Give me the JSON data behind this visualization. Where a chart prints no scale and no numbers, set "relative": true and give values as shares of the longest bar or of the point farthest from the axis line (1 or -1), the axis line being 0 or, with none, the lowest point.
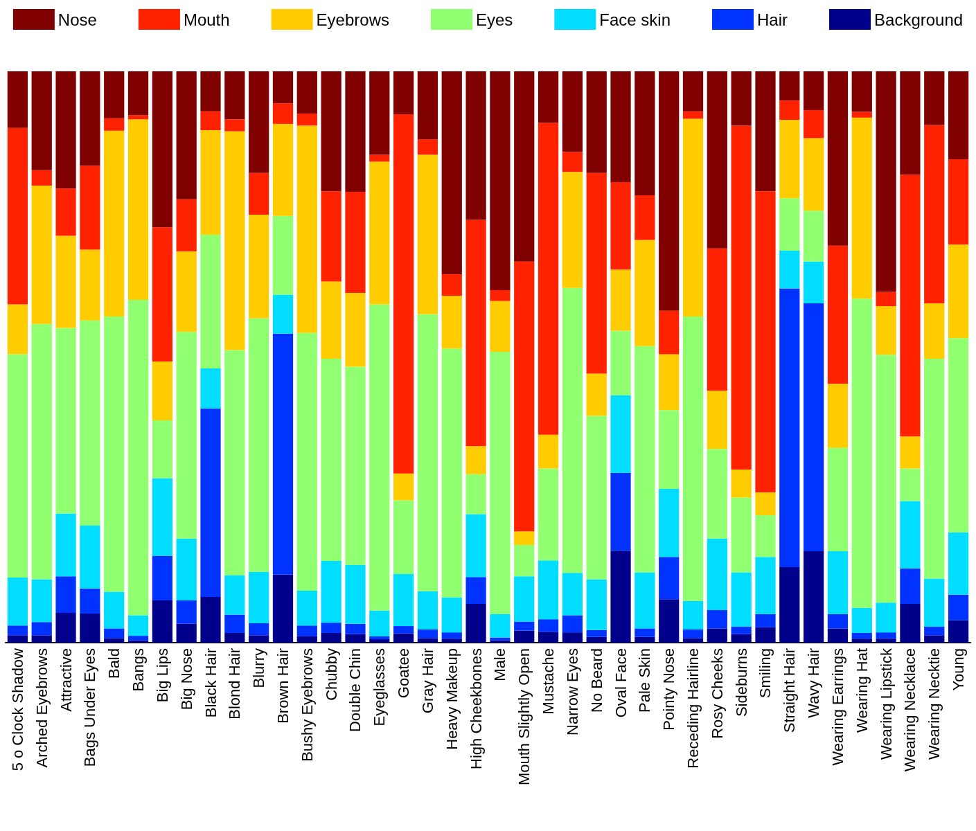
{
  "chart_data": {
    "type": "bar",
    "stacked": true,
    "relative": true,
    "legend": "top",
    "grid": false,
    "categories": [
      "5 o Clock Shadow",
      "Arched Eyebrows",
      "Attractive",
      "Bags Under Eyes",
      "Bald",
      "Bangs",
      "Big Lips",
      "Big Nose",
      "Black Hair",
      "Blond Hair",
      "Blurry",
      "Brown Hair",
      "Bushy Eyebrows",
      "Chubby",
      "Double Chin",
      "Eyeglasses",
      "Goatee",
      "Gray Hair",
      "Heavy Makeup",
      "High Cheekbones",
      "Male",
      "Mouth Slightly Open",
      "Mustache",
      "Narrow Eyes",
      "No Beard",
      "Oval Face",
      "Pale Skin",
      "Pointy Nose",
      "Receding Hairline",
      "Rosy Cheeks",
      "Sideburns",
      "Smiling",
      "Straight Hair",
      "Wavy Hair",
      "Wearing Earrings",
      "Wearing Hat",
      "Wearing Lipstick",
      "Wearing Necklace",
      "Wearing Necktie",
      "Young"
    ],
    "series": [
      {
        "name": "Background",
        "color": "#00008b",
        "values": [
          0.013,
          0.013,
          0.052,
          0.051,
          0.008,
          0.004,
          0.074,
          0.033,
          0.08,
          0.017,
          0.013,
          0.119,
          0.011,
          0.017,
          0.015,
          0.006,
          0.016,
          0.008,
          0.007,
          0.068,
          0.004,
          0.021,
          0.019,
          0.018,
          0.01,
          0.161,
          0.01,
          0.076,
          0.008,
          0.025,
          0.015,
          0.027,
          0.132,
          0.16,
          0.025,
          0.007,
          0.007,
          0.068,
          0.013,
          0.039
        ]
      },
      {
        "name": "Hair",
        "color": "#0033ff",
        "values": [
          0.017,
          0.023,
          0.064,
          0.044,
          0.017,
          0.008,
          0.078,
          0.041,
          0.33,
          0.032,
          0.021,
          0.422,
          0.019,
          0.018,
          0.018,
          0.005,
          0.013,
          0.015,
          0.011,
          0.047,
          0.005,
          0.016,
          0.022,
          0.03,
          0.012,
          0.136,
          0.015,
          0.074,
          0.015,
          0.032,
          0.013,
          0.023,
          0.488,
          0.434,
          0.025,
          0.01,
          0.011,
          0.062,
          0.015,
          0.045
        ]
      },
      {
        "name": "Face skin",
        "color": "#00ddff",
        "values": [
          0.084,
          0.075,
          0.11,
          0.11,
          0.064,
          0.036,
          0.136,
          0.108,
          0.07,
          0.069,
          0.09,
          0.068,
          0.061,
          0.108,
          0.103,
          0.045,
          0.091,
          0.067,
          0.061,
          0.11,
          0.041,
          0.079,
          0.103,
          0.074,
          0.089,
          0.136,
          0.098,
          0.119,
          0.05,
          0.125,
          0.095,
          0.1,
          0.066,
          0.073,
          0.11,
          0.044,
          0.052,
          0.118,
          0.084,
          0.109
        ]
      },
      {
        "name": "Eyes",
        "color": "#90ff70",
        "values": [
          0.391,
          0.447,
          0.325,
          0.359,
          0.482,
          0.552,
          0.101,
          0.362,
          0.234,
          0.394,
          0.444,
          0.138,
          0.451,
          0.354,
          0.347,
          0.536,
          0.129,
          0.485,
          0.436,
          0.07,
          0.459,
          0.055,
          0.161,
          0.499,
          0.286,
          0.113,
          0.396,
          0.138,
          0.498,
          0.157,
          0.131,
          0.073,
          0.092,
          0.089,
          0.181,
          0.541,
          0.434,
          0.057,
          0.385,
          0.34
        ]
      },
      {
        "name": "Eyebrows",
        "color": "#ffcc00",
        "values": [
          0.087,
          0.242,
          0.161,
          0.124,
          0.325,
          0.316,
          0.103,
          0.141,
          0.183,
          0.383,
          0.181,
          0.161,
          0.363,
          0.135,
          0.129,
          0.25,
          0.047,
          0.279,
          0.092,
          0.049,
          0.089,
          0.024,
          0.059,
          0.203,
          0.074,
          0.107,
          0.186,
          0.098,
          0.346,
          0.102,
          0.049,
          0.04,
          0.137,
          0.127,
          0.112,
          0.317,
          0.085,
          0.056,
          0.097,
          0.164
        ]
      },
      {
        "name": "Mouth",
        "color": "#ff2200",
        "values": [
          0.309,
          0.027,
          0.083,
          0.147,
          0.022,
          0.007,
          0.235,
          0.091,
          0.033,
          0.021,
          0.073,
          0.036,
          0.021,
          0.158,
          0.177,
          0.012,
          0.629,
          0.027,
          0.038,
          0.396,
          0.019,
          0.472,
          0.546,
          0.035,
          0.351,
          0.153,
          0.078,
          0.076,
          0.013,
          0.249,
          0.602,
          0.527,
          0.034,
          0.049,
          0.242,
          0.01,
          0.025,
          0.458,
          0.312,
          0.149
        ]
      },
      {
        "name": "Nose",
        "color": "#800000",
        "values": [
          0.099,
          0.173,
          0.205,
          0.165,
          0.082,
          0.077,
          0.273,
          0.224,
          0.07,
          0.084,
          0.178,
          0.056,
          0.074,
          0.21,
          0.211,
          0.146,
          0.075,
          0.119,
          0.355,
          0.26,
          0.383,
          0.333,
          0.09,
          0.141,
          0.178,
          0.194,
          0.217,
          0.419,
          0.07,
          0.31,
          0.095,
          0.21,
          0.051,
          0.068,
          0.305,
          0.071,
          0.386,
          0.181,
          0.094,
          0.154
        ]
      }
    ]
  }
}
